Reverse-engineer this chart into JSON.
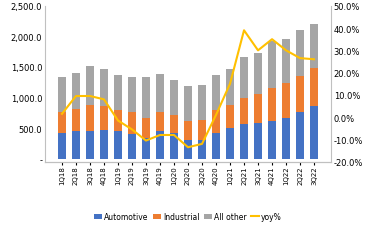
{
  "quarters": [
    "1Q18",
    "2Q18",
    "3Q18",
    "4Q18",
    "1Q19",
    "2Q19",
    "3Q19",
    "4Q19",
    "1Q20",
    "2Q20",
    "3Q20",
    "4Q20",
    "1Q21",
    "2Q21",
    "3Q21",
    "4Q21",
    "1Q22",
    "2Q22",
    "3Q22"
  ],
  "automotive": [
    420,
    450,
    460,
    470,
    450,
    400,
    330,
    460,
    420,
    310,
    300,
    420,
    500,
    560,
    580,
    620,
    670,
    760,
    860
  ],
  "industrial": [
    340,
    370,
    410,
    390,
    340,
    360,
    330,
    300,
    290,
    300,
    330,
    380,
    380,
    430,
    470,
    530,
    560,
    590,
    630
  ],
  "all_other": [
    570,
    580,
    650,
    610,
    570,
    570,
    680,
    620,
    570,
    580,
    570,
    560,
    590,
    680,
    670,
    780,
    730,
    760,
    720
  ],
  "yoy_pct": [
    1.5,
    9.5,
    9.5,
    8.0,
    -1.5,
    -5.5,
    -10.5,
    -8.0,
    -8.0,
    -13.5,
    -12.0,
    1.0,
    15.0,
    39.0,
    30.0,
    35.0,
    30.0,
    26.5,
    26.0
  ],
  "bar_colors": [
    "#4472c4",
    "#ed7d31",
    "#a5a5a5"
  ],
  "line_color": "#ffc000",
  "ylim_left": [
    -50,
    2500
  ],
  "ylim_right": [
    -20,
    50
  ],
  "legend_labels": [
    "Automotive",
    "Industrial",
    "All other",
    "yoy%"
  ],
  "ytick_left": [
    0,
    500,
    1000,
    1500,
    2000,
    2500
  ],
  "ytick_right": [
    -20,
    -10,
    0,
    10,
    20,
    30,
    40,
    50
  ],
  "bar_width": 0.55
}
